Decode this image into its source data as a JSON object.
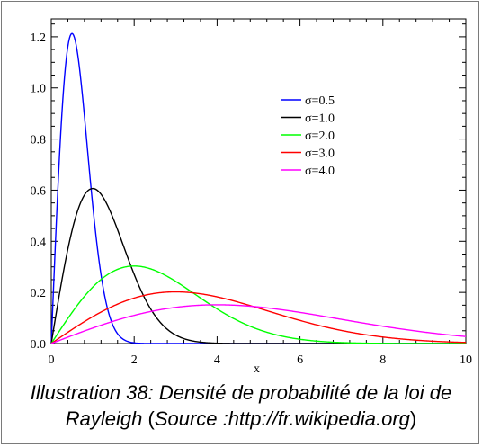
{
  "caption": {
    "line1": "Illustration 38: Densité de probabilité de la loi de",
    "line2_name": "Rayleigh",
    "line2_open": " (",
    "line2_source": "Source :http://fr.wikipedia.org",
    "line2_close": ")"
  },
  "chart_data": {
    "type": "line",
    "title": "",
    "xlabel": "x",
    "ylabel": "",
    "xlim": [
      0,
      10
    ],
    "ylim": [
      0,
      1.27
    ],
    "x_ticks": [
      0,
      2,
      4,
      6,
      8,
      10
    ],
    "y_ticks": [
      "0.0",
      "0.2",
      "0.4",
      "0.6",
      "0.8",
      "1.0",
      "1.2"
    ],
    "legend_position": "top-right",
    "series": [
      {
        "name": "σ=0.5",
        "sigma": 0.5,
        "color": "#0000ff"
      },
      {
        "name": "σ=1.0",
        "sigma": 1.0,
        "color": "#000000"
      },
      {
        "name": "σ=2.0",
        "sigma": 2.0,
        "color": "#00ff00"
      },
      {
        "name": "σ=3.0",
        "sigma": 3.0,
        "color": "#ff0000"
      },
      {
        "name": "σ=4.0",
        "sigma": 4.0,
        "color": "#ff00ff"
      }
    ]
  }
}
